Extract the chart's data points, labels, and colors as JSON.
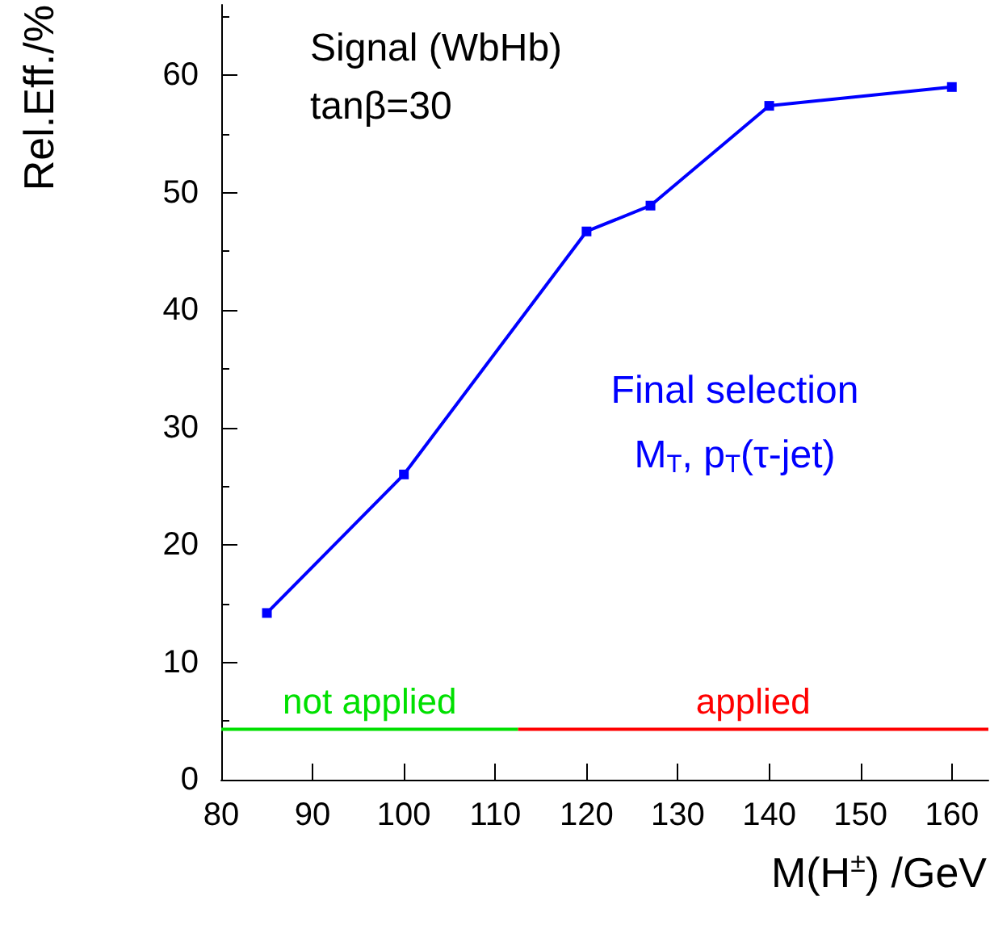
{
  "chart_data": {
    "type": "line",
    "xlabel": "M(H$^{±}$) /GeV",
    "ylabel": "Rel.Eff./%",
    "x": [
      85,
      100,
      120,
      127,
      140,
      160
    ],
    "series": [
      {
        "color": "#0000ff",
        "values": [
          14.2,
          26,
          46.7,
          48.9,
          57.4,
          59
        ],
        "marker": "square"
      },
      {
        "name": "not applied",
        "color": "#00e000",
        "x": [
          80,
          112.5
        ],
        "values": [
          4.3,
          4.3
        ],
        "marker": "none"
      },
      {
        "name": "applied",
        "color": "#ff0000",
        "x": [
          112.5,
          164
        ],
        "values": [
          4.3,
          4.3
        ],
        "marker": "none"
      }
    ],
    "xlim": [
      80,
      164
    ],
    "xticks": [
      80,
      90,
      100,
      110,
      120,
      130,
      140,
      150,
      160
    ],
    "ylim": [
      0,
      66
    ],
    "yticks": [
      0,
      10,
      20,
      30,
      40,
      50,
      60
    ],
    "grid": false,
    "legend": false,
    "annotations": [
      "Signal (WbHb)",
      "tanβ=30",
      "Final selection",
      "M$_{T}$, p$_{T}$(τ-jet)"
    ]
  }
}
